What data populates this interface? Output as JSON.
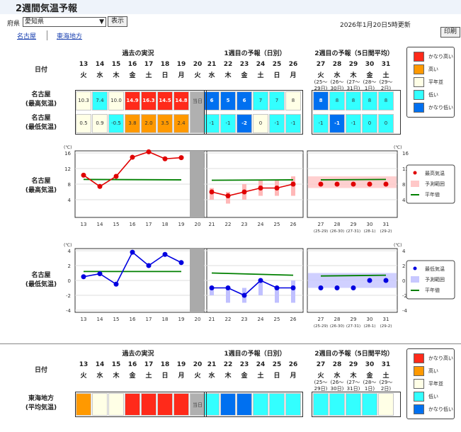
{
  "page_title": "2週間気温予報",
  "prefecture": {
    "label": "府県",
    "selected": "愛知県",
    "show_button": "表示"
  },
  "update_time": "2026年1月20日5時更新",
  "print_button": "印刷",
  "area_tabs": [
    "名古屋",
    "東海地方"
  ],
  "section_headers": {
    "past": "過去の実況",
    "week1": "1週目の予報（日別）",
    "week2": "2週目の予報（5日間平均）"
  },
  "date_label": "日付",
  "dates": [
    {
      "d": "13",
      "w": "火"
    },
    {
      "d": "14",
      "w": "水"
    },
    {
      "d": "15",
      "w": "木"
    },
    {
      "d": "16",
      "w": "金"
    },
    {
      "d": "17",
      "w": "土"
    },
    {
      "d": "18",
      "w": "日"
    },
    {
      "d": "19",
      "w": "月"
    },
    {
      "d": "20",
      "w": "火"
    },
    {
      "d": "21",
      "w": "水"
    },
    {
      "d": "22",
      "w": "木"
    },
    {
      "d": "23",
      "w": "金"
    },
    {
      "d": "24",
      "w": "土"
    },
    {
      "d": "25",
      "w": "日"
    },
    {
      "d": "26",
      "w": "月"
    },
    {
      "d": "27",
      "w": "火",
      "r1": "(25〜",
      "r2": "29日)"
    },
    {
      "d": "28",
      "w": "水",
      "r1": "(26〜",
      "r2": "30日)"
    },
    {
      "d": "29",
      "w": "木",
      "r1": "(27〜",
      "r2": "31日)"
    },
    {
      "d": "30",
      "w": "金",
      "r1": "(28〜",
      "r2": "1日)"
    },
    {
      "d": "31",
      "w": "土",
      "r1": "(29〜",
      "r2": "2日)"
    }
  ],
  "today_label": "当日",
  "nagoya": {
    "max_label": [
      "名古屋",
      "(最高気温)"
    ],
    "min_label": [
      "名古屋",
      "(最低気温)"
    ],
    "max_past": [
      {
        "v": "10.3",
        "c": "normal"
      },
      {
        "v": "7.4",
        "c": "low"
      },
      {
        "v": "10.0",
        "c": "normal"
      },
      {
        "v": "14.9",
        "c": "vhigh"
      },
      {
        "v": "16.3",
        "c": "vhigh"
      },
      {
        "v": "14.5",
        "c": "vhigh"
      },
      {
        "v": "14.8",
        "c": "vhigh"
      }
    ],
    "max_week1": [
      {
        "v": "6",
        "c": "vlow"
      },
      {
        "v": "5",
        "c": "vlow"
      },
      {
        "v": "6",
        "c": "vlow"
      },
      {
        "v": "7",
        "c": "low"
      },
      {
        "v": "7",
        "c": "low"
      },
      {
        "v": "8",
        "c": "normal"
      }
    ],
    "max_week2": [
      {
        "v": "8",
        "c": "vlow"
      },
      {
        "v": "8",
        "c": "low"
      },
      {
        "v": "8",
        "c": "low"
      },
      {
        "v": "8",
        "c": "low"
      },
      {
        "v": "8",
        "c": "low"
      }
    ],
    "min_past": [
      {
        "v": "0.5",
        "c": "normal"
      },
      {
        "v": "0.9",
        "c": "normal"
      },
      {
        "v": "-0.5",
        "c": "low"
      },
      {
        "v": "3.8",
        "c": "high"
      },
      {
        "v": "2.0",
        "c": "high"
      },
      {
        "v": "3.5",
        "c": "high"
      },
      {
        "v": "2.4",
        "c": "high"
      }
    ],
    "min_week1": [
      {
        "v": "-1",
        "c": "low"
      },
      {
        "v": "-1",
        "c": "low"
      },
      {
        "v": "-2",
        "c": "vlow"
      },
      {
        "v": "0",
        "c": "normal"
      },
      {
        "v": "-1",
        "c": "low"
      },
      {
        "v": "-1",
        "c": "low"
      }
    ],
    "min_week2": [
      {
        "v": "-1",
        "c": "low"
      },
      {
        "v": "-1",
        "c": "vlow"
      },
      {
        "v": "-1",
        "c": "low"
      },
      {
        "v": "0",
        "c": "low"
      },
      {
        "v": "0",
        "c": "low"
      }
    ]
  },
  "tokai": {
    "label": [
      "東海地方",
      "(平均気温)"
    ],
    "past": [
      "high",
      "normal",
      "normal",
      "vhigh",
      "vhigh",
      "vhigh",
      "vhigh"
    ],
    "week1": [
      "low",
      "vlow",
      "vlow",
      "low",
      "low",
      "low"
    ],
    "week2": [
      "low",
      "low",
      "low",
      "low",
      "normal"
    ]
  },
  "legend_categories": [
    {
      "key": "vhigh",
      "label": "かなり高い",
      "color": "#ff2a1a"
    },
    {
      "key": "high",
      "label": "高い",
      "color": "#ff9900"
    },
    {
      "key": "normal",
      "label": "平年並",
      "color": "#ffffe6"
    },
    {
      "key": "low",
      "label": "低い",
      "color": "#33ffff"
    },
    {
      "key": "vlow",
      "label": "かなり低い",
      "color": "#0070f0"
    }
  ],
  "chart_legend_max": [
    "最高気温",
    "予測範囲",
    "平年値"
  ],
  "chart_legend_min": [
    "最低気温",
    "予測範囲",
    "平年値"
  ],
  "week2_ranges": [
    "(25-29)",
    "(26-30)",
    "(27-31)",
    "(28-1)",
    "(29-2)"
  ],
  "chart_data": [
    {
      "type": "line",
      "title": "名古屋 (最高気温)",
      "ylabel": "(℃)",
      "ylim": [
        0,
        16
      ],
      "yticks": [
        4,
        8,
        12,
        16
      ],
      "series": [
        {
          "name": "最高気温",
          "x": [
            "13",
            "14",
            "15",
            "16",
            "17",
            "18",
            "19"
          ],
          "values": [
            10.3,
            7.4,
            10.0,
            14.9,
            16.3,
            14.5,
            14.8
          ],
          "color": "#e00000"
        },
        {
          "name": "最高気温",
          "x": [
            "21",
            "22",
            "23",
            "24",
            "25",
            "26"
          ],
          "values": [
            6,
            5,
            6,
            7,
            7,
            8
          ],
          "color": "#e00000"
        },
        {
          "name": "最高気温",
          "x": [
            "27",
            "28",
            "29",
            "30",
            "31"
          ],
          "values": [
            8,
            8,
            8,
            8,
            8
          ],
          "color": "#e00000"
        },
        {
          "name": "予測範囲",
          "x": [
            "21",
            "22",
            "23",
            "24",
            "25",
            "26"
          ],
          "low": [
            4,
            3,
            4,
            5,
            5,
            5
          ],
          "high": [
            7,
            6,
            8,
            9,
            9,
            10
          ],
          "color": "#ffb8b8"
        },
        {
          "name": "予測範囲",
          "x": [
            "27-31"
          ],
          "low": [
            7
          ],
          "high": [
            10
          ],
          "color": "#ffc8c8"
        },
        {
          "name": "平年値",
          "x": [
            "13",
            "19"
          ],
          "values": [
            9.2,
            9.1
          ],
          "color": "#008000"
        },
        {
          "name": "平年値",
          "x": [
            "21",
            "26"
          ],
          "values": [
            9.0,
            9.1
          ],
          "color": "#008000"
        },
        {
          "name": "平年値",
          "x": [
            "27",
            "31"
          ],
          "values": [
            9.1,
            9.2
          ],
          "color": "#008000"
        }
      ]
    },
    {
      "type": "line",
      "title": "名古屋 (最低気温)",
      "ylabel": "(℃)",
      "ylim": [
        -4,
        4
      ],
      "yticks": [
        -4,
        -2,
        0,
        2,
        4
      ],
      "series": [
        {
          "name": "最低気温",
          "x": [
            "13",
            "14",
            "15",
            "16",
            "17",
            "18",
            "19"
          ],
          "values": [
            0.5,
            0.9,
            -0.5,
            3.8,
            2.0,
            3.5,
            2.4
          ],
          "color": "#0000e0"
        },
        {
          "name": "最低気温",
          "x": [
            "21",
            "22",
            "23",
            "24",
            "25",
            "26"
          ],
          "values": [
            -1,
            -1,
            -2,
            0,
            -1,
            -1
          ],
          "color": "#0000e0"
        },
        {
          "name": "最低気温",
          "x": [
            "27",
            "28",
            "29",
            "30",
            "31"
          ],
          "values": [
            -1,
            -1,
            -1,
            0,
            0
          ],
          "color": "#0000e0"
        },
        {
          "name": "予測範囲",
          "x": [
            "21",
            "22",
            "23",
            "24",
            "25",
            "26"
          ],
          "low": [
            -2,
            -3,
            -3,
            -2,
            -3,
            -3
          ],
          "high": [
            -1,
            -1,
            -1,
            0,
            -1,
            0
          ],
          "color": "#c0c0ff"
        },
        {
          "name": "予測範囲",
          "x": [
            "27-31"
          ],
          "low": [
            -1
          ],
          "high": [
            1
          ],
          "color": "#c8c8ff"
        },
        {
          "name": "平年値",
          "x": [
            "13",
            "19"
          ],
          "values": [
            1.2,
            1.2
          ],
          "color": "#008000"
        },
        {
          "name": "平年値",
          "x": [
            "21",
            "26"
          ],
          "values": [
            1.0,
            0.7
          ],
          "color": "#008000"
        },
        {
          "name": "平年値",
          "x": [
            "27",
            "31"
          ],
          "values": [
            0.6,
            0.7
          ],
          "color": "#008000"
        }
      ]
    }
  ]
}
